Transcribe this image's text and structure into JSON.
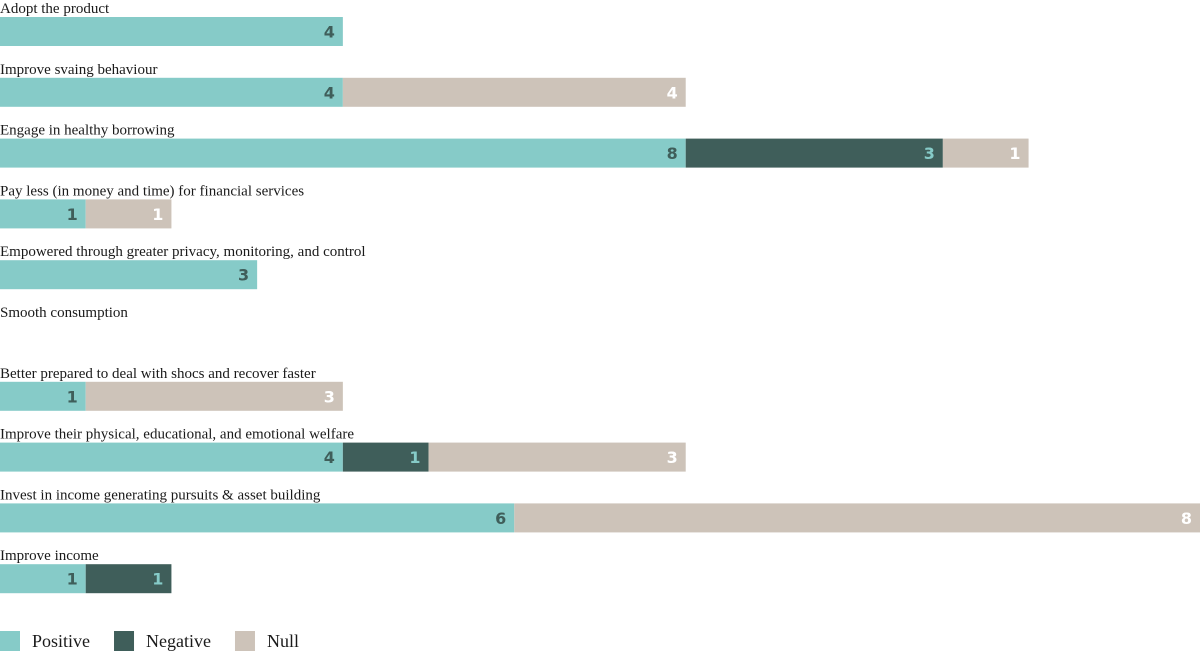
{
  "chart_data": {
    "type": "stacked-bar-horizontal",
    "categories": [
      "Adopt the product",
      "Improve svaing behaviour",
      "Engage in healthy borrowing",
      "Pay less (in money and time) for financial services",
      "Empowered through greater privacy, monitoring, and control",
      "Smooth consumption",
      "Better prepared to deal with shocs and recover faster",
      "Improve their physical, educational, and emotional welfare",
      "Invest in income generating pursuits & asset building",
      "Improve income"
    ],
    "series": [
      {
        "name": "Positive",
        "color": "#86cbc8",
        "label_color": "#3f5e5a",
        "values": [
          4,
          4,
          8,
          1,
          3,
          null,
          1,
          4,
          6,
          1
        ]
      },
      {
        "name": "Negative",
        "color": "#3f5e5a",
        "label_color": "#86cbc8",
        "values": [
          null,
          null,
          3,
          null,
          null,
          null,
          null,
          1,
          null,
          1
        ]
      },
      {
        "name": "Null",
        "color": "#cdc3b9",
        "label_color": "#ffffff",
        "values": [
          null,
          4,
          1,
          1,
          null,
          null,
          3,
          3,
          8,
          null
        ]
      }
    ],
    "xlim": [
      0,
      14
    ],
    "legend": "bottom-left"
  }
}
